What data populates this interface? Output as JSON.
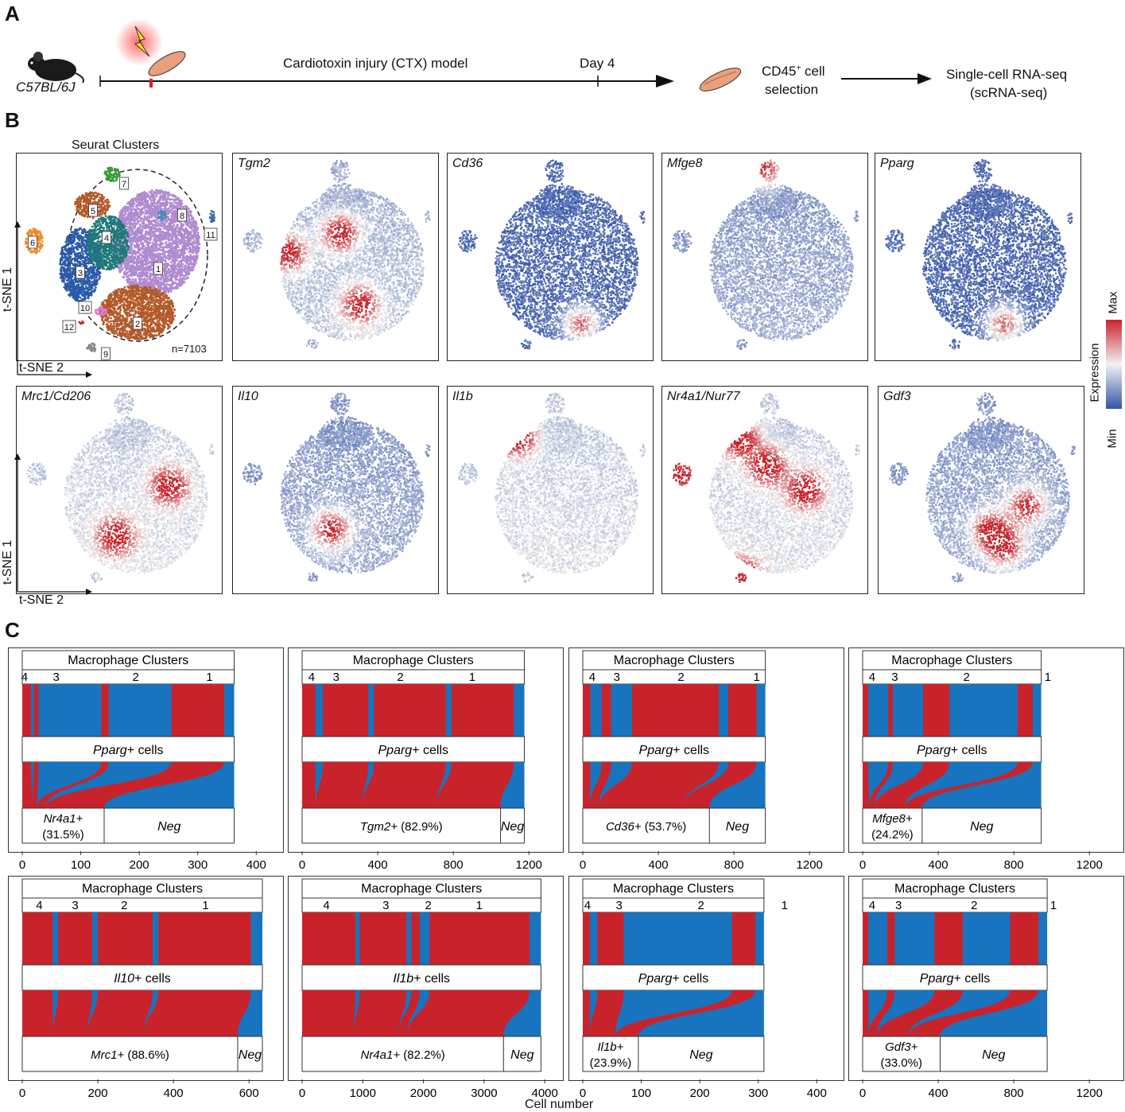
{
  "panel_labels": {
    "a": "A",
    "b": "B",
    "c": "C"
  },
  "panelA": {
    "strain": "C57BL/6J",
    "model": "Cardiotoxin injury (CTX) model",
    "day": "Day 4",
    "selection_line1": "CD45",
    "selection_sup": "+",
    "selection_line1b": " cell",
    "selection_line2": "selection",
    "seq_line1": "Single-cell RNA-seq",
    "seq_line2": "(scRNA-seq)"
  },
  "panelB": {
    "seurat_title": "Seurat Clusters",
    "n_label": "n=7103",
    "axis_y": "t-SNE 1",
    "axis_x": "t-SNE 2",
    "cluster_labels": [
      "1",
      "2",
      "3",
      "4",
      "5",
      "6",
      "7",
      "8",
      "9",
      "10",
      "11",
      "12"
    ],
    "genes_row1": [
      "Tgm2",
      "Cd36",
      "Mfge8",
      "Pparg"
    ],
    "genes_row2": [
      "Mrc1/Cd206",
      "Il10",
      "Il1b",
      "Nr4a1/Nur77",
      "Gdf3"
    ],
    "legend": {
      "max": "Max",
      "min": "Min",
      "title": "Expression"
    },
    "colors": {
      "high": "#c8232b",
      "mid": "#f2f2f2",
      "low": "#3454a8"
    }
  },
  "panelC": {
    "header": "Macrophage Clusters",
    "xlabel": "Cell number",
    "colors": {
      "red": "#c8232b",
      "blue": "#1874be"
    },
    "panels": [
      {
        "clusters": [
          "4",
          "3",
          "2",
          "1"
        ],
        "cluster_x": [
          4,
          58,
          194,
          320
        ],
        "red_segments": [
          [
            0,
            15
          ],
          [
            20,
            28
          ],
          [
            135,
            148
          ],
          [
            255,
            345
          ]
        ],
        "middle_italic": "Pparg",
        "middle_rest": "+ cells",
        "pos_label": "Nr4a1+",
        "pos_pct": "(31.5%)",
        "pos_two_line": true,
        "neg_label": "Neg",
        "xmax": 420,
        "ticks": [
          "0",
          "100",
          "200",
          "300",
          "400"
        ],
        "tick_vals": [
          0,
          100,
          200,
          300,
          400
        ],
        "split": 140
      },
      {
        "clusters": [
          "4",
          "3",
          "2",
          "1"
        ],
        "cluster_x": [
          50,
          180,
          520,
          900
        ],
        "red_segments": [
          [
            0,
            70
          ],
          [
            110,
            350
          ],
          [
            380,
            760
          ],
          [
            790,
            1120
          ]
        ],
        "middle_italic": "Pparg",
        "middle_rest": "+ cells",
        "pos_label": "Tgm2+",
        "pos_pct": "(82.9%)",
        "pos_two_line": false,
        "neg_label": "Neg",
        "xmax": 1300,
        "ticks": [
          "0",
          "400",
          "800",
          "1200"
        ],
        "tick_vals": [
          0,
          400,
          800,
          1200
        ],
        "split": 1050
      },
      {
        "clusters": [
          "4",
          "3",
          "2",
          "1"
        ],
        "cluster_x": [
          50,
          180,
          520,
          920
        ],
        "red_segments": [
          [
            0,
            40
          ],
          [
            100,
            150
          ],
          [
            260,
            720
          ],
          [
            770,
            920
          ]
        ],
        "middle_italic": "Pparg",
        "middle_rest": "+ cells",
        "pos_label": "Cd36+",
        "pos_pct": "(53.7%)",
        "pos_two_line": false,
        "neg_label": "Neg",
        "xmax": 1300,
        "ticks": [
          "0",
          "400",
          "800",
          "1200"
        ],
        "tick_vals": [
          0,
          400,
          800,
          1200
        ],
        "split": 670
      },
      {
        "clusters": [
          "4",
          "3",
          "2",
          "1"
        ],
        "cluster_x": [
          50,
          170,
          550,
          980
        ],
        "red_segments": [
          [
            0,
            30
          ],
          [
            135,
            160
          ],
          [
            320,
            460
          ],
          [
            820,
            900
          ]
        ],
        "middle_italic": "Pparg",
        "middle_rest": "+ cells",
        "pos_label": "Mfge8+",
        "pos_pct": "(24.2%)",
        "pos_two_line": true,
        "neg_label": "Neg",
        "xmax": 1300,
        "ticks": [
          "0",
          "400",
          "800",
          "1200"
        ],
        "tick_vals": [
          0,
          400,
          800,
          1200
        ],
        "split": 315
      },
      {
        "clusters": [
          "4",
          "3",
          "2",
          "1"
        ],
        "cluster_x": [
          45,
          140,
          270,
          485
        ],
        "red_segments": [
          [
            0,
            80
          ],
          [
            95,
            185
          ],
          [
            200,
            345
          ],
          [
            360,
            605
          ]
        ],
        "middle_italic": "Il10",
        "middle_rest": "+ cells",
        "pos_label": "Mrc1+",
        "pos_pct": "(88.6%)",
        "pos_two_line": false,
        "neg_label": "Neg",
        "xmax": 650,
        "ticks": [
          "0",
          "200",
          "400",
          "600"
        ],
        "tick_vals": [
          0,
          200,
          400,
          600
        ],
        "split": 570
      },
      {
        "clusters": [
          "4",
          "3",
          "2",
          "1"
        ],
        "cluster_x": [
          400,
          1380,
          2080,
          2920
        ],
        "red_segments": [
          [
            0,
            880
          ],
          [
            950,
            1720
          ],
          [
            1800,
            1940
          ],
          [
            2100,
            3750
          ]
        ],
        "middle_italic": "Il1b",
        "middle_rest": "+ cells",
        "pos_label": "Nr4a1+",
        "pos_pct": "(82.2%)",
        "pos_two_line": false,
        "neg_label": "Neg",
        "xmax": 4050,
        "ticks": [
          "0",
          "1000",
          "2000",
          "3000",
          "4000"
        ],
        "tick_vals": [
          0,
          1000,
          2000,
          3000,
          4000
        ],
        "split": 3320
      },
      {
        "clusters": [
          "4",
          "3",
          " 2",
          "1"
        ],
        "cluster_x": [
          8,
          62,
          202,
          345
        ],
        "red_segments": [
          [
            0,
            12
          ],
          [
            25,
            70
          ],
          [
            255,
            295
          ]
        ],
        "middle_italic": "Pparg",
        "middle_rest": "+ cells",
        "pos_label": "Il1b+",
        "pos_pct": "(23.9%)",
        "pos_two_line": true,
        "neg_label": "Neg",
        "xmax": 420,
        "ticks": [
          "0",
          "100",
          "200",
          "300",
          "400"
        ],
        "tick_vals": [
          0,
          100,
          200,
          300,
          400
        ],
        "split": 95
      },
      {
        "clusters": [
          "4",
          "3",
          "2",
          "1"
        ],
        "cluster_x": [
          50,
          190,
          590,
          1010
        ],
        "red_segments": [
          [
            0,
            30
          ],
          [
            130,
            170
          ],
          [
            380,
            530
          ],
          [
            780,
            930
          ]
        ],
        "middle_italic": "Pparg",
        "middle_rest": "+ cells",
        "pos_label": "Gdf3+",
        "pos_pct": "(33.0%)",
        "pos_two_line": true,
        "neg_label": "Neg",
        "xmax": 1300,
        "ticks": [
          "0",
          "400",
          "800",
          "1200"
        ],
        "tick_vals": [
          0,
          400,
          800,
          1200
        ],
        "split": 410
      }
    ]
  }
}
